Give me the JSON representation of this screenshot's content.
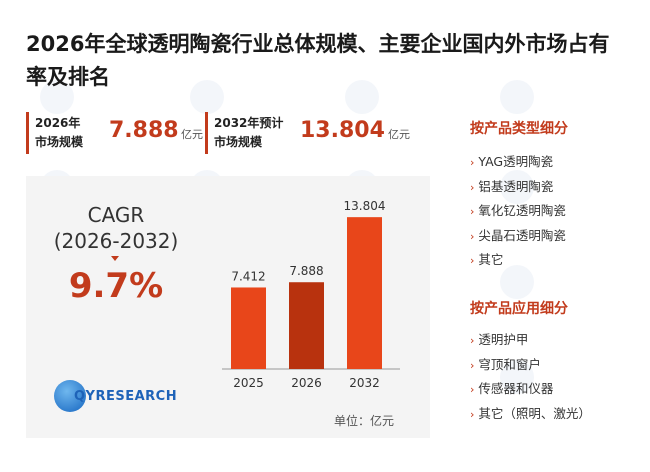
{
  "title": "2026年全球透明陶瓷行业总体规模、主要企业国内外市场占有率及排名",
  "kpis": [
    {
      "label_line1": "2026年",
      "label_line2": "市场规模",
      "value": "7.888",
      "unit": "亿元"
    },
    {
      "label_line1": "2032年预计",
      "label_line2": "市场规模",
      "value": "13.804",
      "unit": "亿元"
    }
  ],
  "cagr": {
    "label": "CAGR",
    "period": "(2026-2032)",
    "value": "9.7%"
  },
  "logo": {
    "text": "QYRESEARCH"
  },
  "chart_data": {
    "type": "bar",
    "categories": [
      "2025",
      "2026",
      "2032"
    ],
    "values": [
      7.412,
      7.888,
      13.804
    ],
    "value_labels": [
      "7.412",
      "7.888",
      "13.804"
    ],
    "unit_label": "单位：亿元",
    "ylim": [
      0,
      15
    ],
    "colors": [
      "#e8461a",
      "#b8320e",
      "#e8461a"
    ],
    "grid": false
  },
  "product_types": {
    "heading": "按产品类型细分",
    "items": [
      "YAG透明陶瓷",
      "铝基透明陶瓷",
      "氧化钇透明陶瓷",
      "尖晶石透明陶瓷",
      "其它"
    ]
  },
  "applications": {
    "heading": "按产品应用细分",
    "items": [
      "透明护甲",
      "穹顶和窗户",
      "传感器和仪器",
      "其它（照明、激光）"
    ]
  }
}
